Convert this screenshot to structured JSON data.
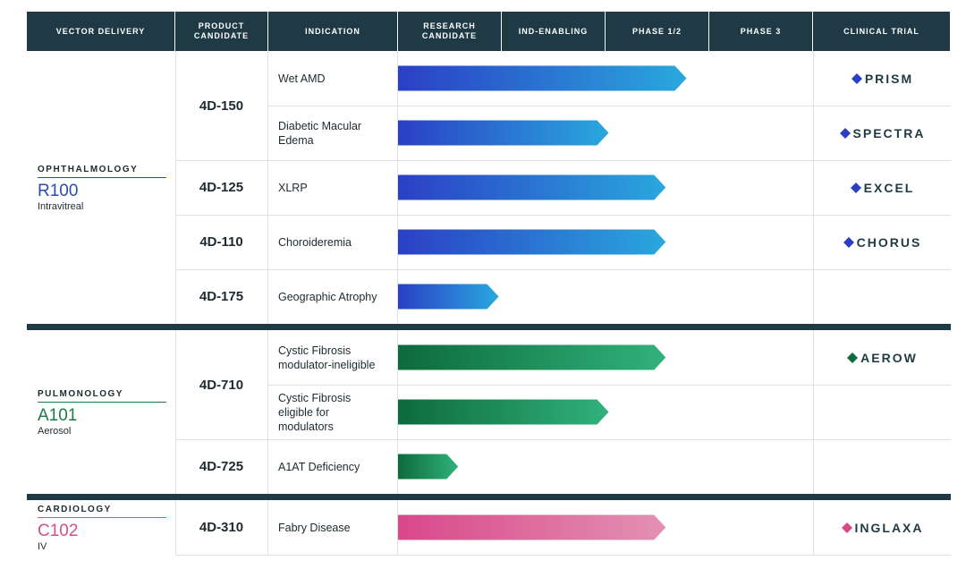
{
  "header": {
    "columns": [
      "VECTOR DELIVERY",
      "PRODUCT CANDIDATE",
      "INDICATION",
      "RESEARCH CANDIDATE",
      "IND-ENABLING",
      "PHASE 1/2",
      "PHASE 3",
      "CLINICAL TRIAL"
    ]
  },
  "groups": [
    {
      "area": "OPHTHALMOLOGY",
      "code": "R100",
      "route": "Intravitreal",
      "color": "#2a4bb0",
      "bar_colors": [
        "#2b3fc6",
        "#29a8dd"
      ],
      "candidates": [
        {
          "name": "4D-150",
          "programs": [
            {
              "indication": "Wet AMD",
              "progress": 2.78,
              "trial": "PRISM"
            },
            {
              "indication": "Diabetic Macular Edema",
              "progress": 2.03,
              "trial": "SPECTRA"
            }
          ]
        },
        {
          "name": "4D-125",
          "programs": [
            {
              "indication": "XLRP",
              "progress": 2.58,
              "trial": "EXCEL"
            }
          ]
        },
        {
          "name": "4D-110",
          "programs": [
            {
              "indication": "Choroideremia",
              "progress": 2.58,
              "trial": "CHORUS"
            }
          ]
        },
        {
          "name": "4D-175",
          "programs": [
            {
              "indication": "Geographic Atrophy",
              "progress": 0.97
            }
          ]
        }
      ]
    },
    {
      "area": "PULMONOLOGY",
      "code": "A101",
      "route": "Aerosol",
      "color": "#1d7a4a",
      "bar_colors": [
        "#0d6a3c",
        "#31b27b"
      ],
      "candidates": [
        {
          "name": "4D-710",
          "programs": [
            {
              "indication": "Cystic Fibrosis modulator-ineligible",
              "progress": 2.58,
              "trial": "AEROW"
            },
            {
              "indication": "Cystic Fibrosis eligible for modulators",
              "progress": 2.03
            }
          ]
        },
        {
          "name": "4D-725",
          "programs": [
            {
              "indication": "A1AT Deficiency",
              "progress": 0.58
            }
          ]
        }
      ]
    },
    {
      "area": "CARDIOLOGY",
      "code": "C102",
      "route": "IV",
      "color": "#d1508a",
      "bar_colors": [
        "#d9488a",
        "#e391b4"
      ],
      "candidates": [
        {
          "name": "4D-310",
          "programs": [
            {
              "indication": "Fabry Disease",
              "progress": 2.58,
              "trial": "INGLAXA"
            }
          ]
        }
      ]
    }
  ]
}
